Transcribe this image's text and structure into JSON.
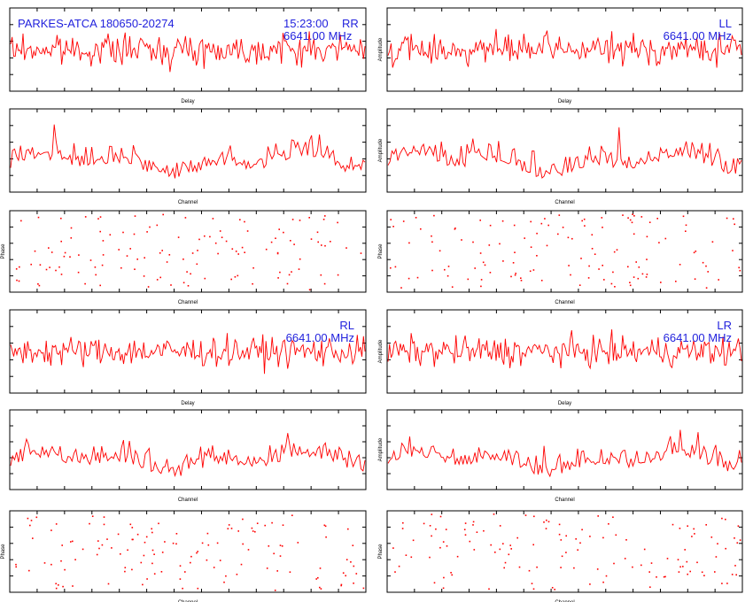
{
  "source": "PARKES-ATCA 180650-20274",
  "time": "15:23:00",
  "colors": {
    "trace": "#ff0000",
    "frame": "#000000",
    "annotation": "#2222dd"
  },
  "chart_data": [
    {
      "id": "rr-delay",
      "type": "line",
      "title": "RR",
      "frequency": "6641.00 MHz",
      "xlabel": "Delay",
      "ylabel": ""
    },
    {
      "id": "ll-delay",
      "type": "line",
      "title": "LL",
      "frequency": "6641.00 MHz",
      "xlabel": "Delay",
      "ylabel": "Amplitude"
    },
    {
      "id": "rr-channel",
      "type": "line",
      "xlabel": "Channel",
      "ylabel": ""
    },
    {
      "id": "ll-channel",
      "type": "line",
      "xlabel": "Channel",
      "ylabel": "Amplitude"
    },
    {
      "id": "rr-phase",
      "type": "scatter",
      "xlabel": "Channel",
      "ylabel": "Phase"
    },
    {
      "id": "ll-phase",
      "type": "scatter",
      "xlabel": "Channel",
      "ylabel": "Phase"
    },
    {
      "id": "rl-delay",
      "type": "line",
      "title": "RL",
      "frequency": "6641.00 MHz",
      "xlabel": "Delay",
      "ylabel": ""
    },
    {
      "id": "lr-delay",
      "type": "line",
      "title": "LR",
      "frequency": "6641.00 MHz",
      "xlabel": "Delay",
      "ylabel": "Amplitude"
    },
    {
      "id": "rl-channel",
      "type": "line",
      "xlabel": "Channel",
      "ylabel": ""
    },
    {
      "id": "lr-channel",
      "type": "line",
      "xlabel": "Channel",
      "ylabel": "Amplitude"
    },
    {
      "id": "rl-phase",
      "type": "scatter",
      "xlabel": "Channel",
      "ylabel": "Phase"
    },
    {
      "id": "lr-phase",
      "type": "scatter",
      "xlabel": "Channel",
      "ylabel": "Phase"
    }
  ]
}
